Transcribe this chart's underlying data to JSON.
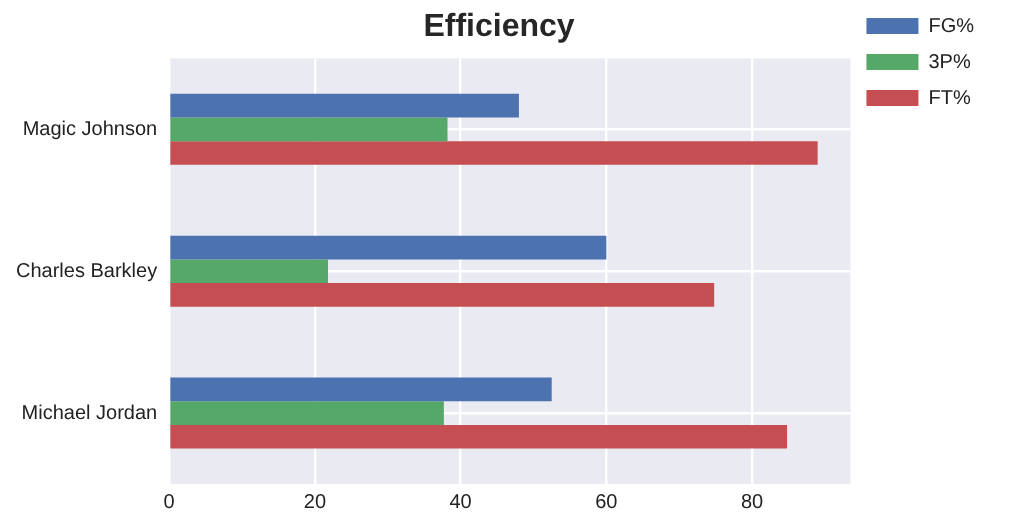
{
  "chart_data": {
    "type": "bar",
    "orientation": "horizontal",
    "title": "Efficiency",
    "categories": [
      "Magic Johnson",
      "Charles Barkley",
      "Michael Jordan"
    ],
    "series": [
      {
        "name": "FG%",
        "color": "#4c72b0",
        "values": [
          48.0,
          60.0,
          52.5
        ]
      },
      {
        "name": "3P%",
        "color": "#55a868",
        "values": [
          38.2,
          21.8,
          37.7
        ]
      },
      {
        "name": "FT%",
        "color": "#c44e52",
        "values": [
          89.0,
          74.8,
          84.8
        ]
      }
    ],
    "xlim": [
      0,
      93.5
    ],
    "xticks": [
      0,
      20,
      40,
      60,
      80
    ],
    "grid": true,
    "legend": "top right"
  }
}
